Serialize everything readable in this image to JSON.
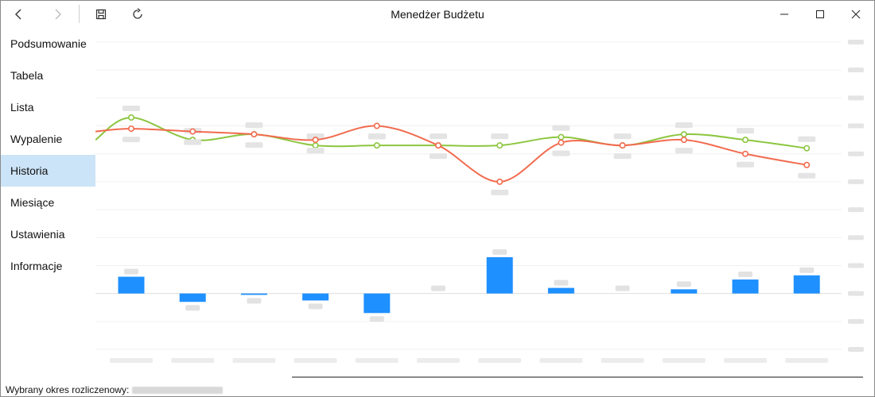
{
  "window": {
    "title": "Menedżer Budżetu",
    "buttons": {
      "back_icon": "arrow-left",
      "forward_icon": "arrow-right",
      "save_icon": "floppy-disk",
      "refresh_icon": "refresh",
      "minimize_icon": "minimize",
      "maximize_icon": "maximize",
      "close_icon": "close"
    }
  },
  "sidebar": {
    "items": [
      {
        "label": "Podsumowanie",
        "active": false
      },
      {
        "label": "Tabela",
        "active": false
      },
      {
        "label": "Lista",
        "active": false
      },
      {
        "label": "Wypalenie",
        "active": false
      },
      {
        "label": "Historia",
        "active": true
      },
      {
        "label": "Miesiące",
        "active": false
      },
      {
        "label": "Ustawienia",
        "active": false
      },
      {
        "label": "Informacje",
        "active": false
      }
    ]
  },
  "chart_data": {
    "type": "line",
    "categories": [
      "1",
      "2",
      "3",
      "4",
      "5",
      "6",
      "7",
      "8",
      "9",
      "10",
      "11",
      "12"
    ],
    "series": [
      {
        "color": "#8cc63f",
        "values": [
          6.3,
          5.5,
          5.7,
          5.3,
          5.3,
          5.3,
          5.3,
          5.6,
          5.3,
          5.7,
          5.5,
          5.2
        ]
      },
      {
        "color": "#f26b4f",
        "values": [
          5.9,
          5.8,
          5.7,
          5.5,
          6.0,
          5.3,
          4.0,
          5.4,
          5.3,
          5.5,
          5.0,
          4.6
        ]
      },
      {
        "type": "bar",
        "color": "#1e90ff",
        "values": [
          0.6,
          -0.3,
          -0.05,
          -0.25,
          -0.7,
          0.0,
          1.3,
          0.2,
          0.0,
          0.15,
          0.5,
          0.65
        ]
      }
    ],
    "ylim": [
      -2,
      9
    ],
    "grid": true
  },
  "statusbar": {
    "label": "Wybrany okres rozliczenowy:"
  }
}
